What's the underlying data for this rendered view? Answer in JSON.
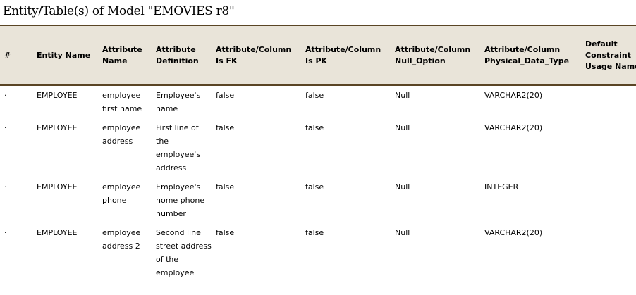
{
  "title": "Entity/Table(s) of Model \"EMOVIES r8\"",
  "columns": [
    "#",
    "Entity Name",
    "Attribute Name",
    "Attribute Definition",
    "Attribute/Column Is FK",
    "Attribute/Column Is PK",
    "Attribute/Column Null_Option",
    "Attribute/Column Physical_Data_Type",
    "Default Constraint Usage Name"
  ],
  "rows": [
    [
      "·",
      "EMPLOYEE",
      "employee first name",
      "Employee's name",
      "false",
      "false",
      "Null",
      "VARCHAR2(20)",
      ""
    ],
    [
      "·",
      "EMPLOYEE",
      "employee address",
      "First line of the employee's address",
      "false",
      "false",
      "Null",
      "VARCHAR2(20)",
      ""
    ],
    [
      "·",
      "EMPLOYEE",
      "employee phone",
      "Employee's home phone number",
      "false",
      "false",
      "Null",
      "INTEGER",
      ""
    ],
    [
      "·",
      "EMPLOYEE",
      "employee address 2",
      "Second line street address of the employee",
      "false",
      "false",
      "Null",
      "VARCHAR2(20)",
      ""
    ]
  ]
}
